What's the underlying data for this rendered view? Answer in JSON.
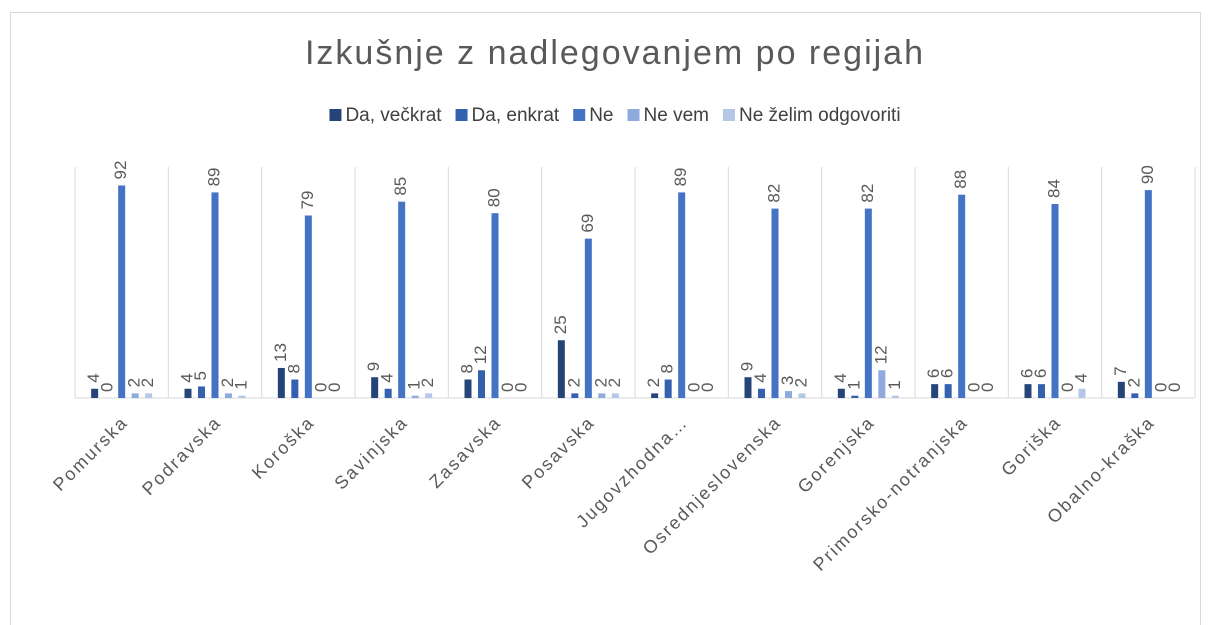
{
  "chart_data": {
    "type": "bar",
    "title": "Izkušnje z nadlegovanjem po regijah",
    "categories": [
      "Pomurska",
      "Podravska",
      "Koroška",
      "Savinjska",
      "Zasavska",
      "Posavska",
      "Jugovzhodna…",
      "Osrednjeslovenska",
      "Gorenjska",
      "Primorsko-notranjska",
      "Goriška",
      "Obalno-kraška"
    ],
    "series": [
      {
        "name": "Da, večkrat",
        "color": "#264478",
        "values": [
          4,
          4,
          13,
          9,
          8,
          25,
          2,
          9,
          4,
          6,
          6,
          7
        ]
      },
      {
        "name": "Da, enkrat",
        "color": "#3460b0",
        "values": [
          0,
          5,
          8,
          4,
          12,
          2,
          8,
          4,
          1,
          6,
          6,
          2
        ]
      },
      {
        "name": "Ne",
        "color": "#4472c4",
        "values": [
          92,
          89,
          79,
          85,
          80,
          69,
          89,
          82,
          82,
          88,
          84,
          90
        ]
      },
      {
        "name": "Ne vem",
        "color": "#8faadc",
        "values": [
          2,
          2,
          0,
          1,
          0,
          2,
          0,
          3,
          12,
          0,
          0,
          0
        ]
      },
      {
        "name": "Ne želim odgovoriti",
        "color": "#b4c7e7",
        "values": [
          2,
          1,
          0,
          2,
          0,
          2,
          0,
          2,
          1,
          0,
          4,
          0
        ]
      }
    ],
    "ylim": [
      0,
      100
    ],
    "legend": "top"
  }
}
